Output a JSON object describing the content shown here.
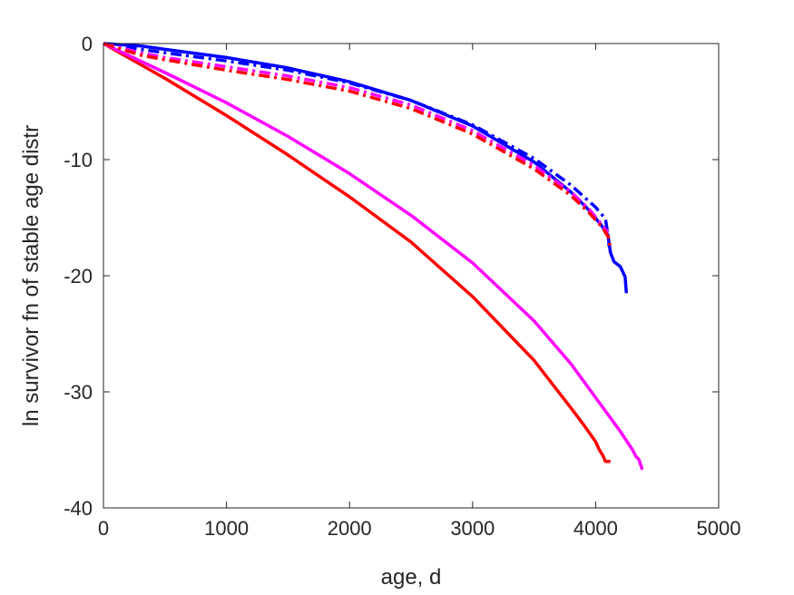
{
  "chart_data": {
    "type": "line",
    "title": "",
    "xlabel": "age, d",
    "ylabel": "ln survivor fn of stable age distr",
    "xlim": [
      0,
      5000
    ],
    "ylim": [
      -40,
      0
    ],
    "xticks": [
      0,
      1000,
      2000,
      3000,
      4000,
      5000
    ],
    "yticks": [
      0,
      -10,
      -20,
      -30,
      -40
    ],
    "xtick_labels": [
      "0",
      "1000",
      "2000",
      "3000",
      "4000",
      "5000"
    ],
    "ytick_labels": [
      "0",
      "-10",
      "-20",
      "-30",
      "-40"
    ],
    "grid": false,
    "series": [
      {
        "color": "#ff0000",
        "style": "solid",
        "points": [
          [
            0,
            0
          ],
          [
            500,
            -3.0
          ],
          [
            1000,
            -6.2
          ],
          [
            1500,
            -9.6
          ],
          [
            2000,
            -13.2
          ],
          [
            2500,
            -17.1
          ],
          [
            3000,
            -21.8
          ],
          [
            3500,
            -27.3
          ],
          [
            3800,
            -31.4
          ],
          [
            3900,
            -32.8
          ],
          [
            4000,
            -34.3
          ],
          [
            4030,
            -35.0
          ],
          [
            4060,
            -35.5
          ],
          [
            4080,
            -36.0
          ],
          [
            4100,
            -36.0
          ],
          [
            4120,
            -36.0
          ]
        ]
      },
      {
        "color": "#ff00ff",
        "style": "solid",
        "points": [
          [
            0,
            0
          ],
          [
            500,
            -2.5
          ],
          [
            1000,
            -5.1
          ],
          [
            1500,
            -8.0
          ],
          [
            2000,
            -11.2
          ],
          [
            2500,
            -14.8
          ],
          [
            3000,
            -18.9
          ],
          [
            3500,
            -23.9
          ],
          [
            3800,
            -27.6
          ],
          [
            4000,
            -30.5
          ],
          [
            4200,
            -33.4
          ],
          [
            4300,
            -35.0
          ],
          [
            4330,
            -35.6
          ],
          [
            4350,
            -35.8
          ],
          [
            4380,
            -36.7
          ]
        ]
      },
      {
        "color": "#0000ff",
        "style": "solid",
        "points": [
          [
            0,
            0
          ],
          [
            300,
            -0.2
          ],
          [
            500,
            -0.5
          ],
          [
            1000,
            -1.2
          ],
          [
            1500,
            -2.1
          ],
          [
            2000,
            -3.3
          ],
          [
            2500,
            -4.9
          ],
          [
            3000,
            -7.1
          ],
          [
            3500,
            -10.2
          ],
          [
            3800,
            -12.8
          ],
          [
            3950,
            -14.4
          ],
          [
            4050,
            -15.7
          ],
          [
            4100,
            -16.5
          ],
          [
            4120,
            -18.0
          ],
          [
            4150,
            -18.8
          ],
          [
            4200,
            -19.2
          ],
          [
            4240,
            -20.1
          ],
          [
            4250,
            -21.5
          ]
        ]
      },
      {
        "color": "#0000ff",
        "style": "dashdot",
        "points": [
          [
            0,
            0
          ],
          [
            300,
            -0.5
          ],
          [
            500,
            -0.8
          ],
          [
            1000,
            -1.5
          ],
          [
            1500,
            -2.3
          ],
          [
            2000,
            -3.4
          ],
          [
            2500,
            -4.9
          ],
          [
            3000,
            -7.0
          ],
          [
            3500,
            -9.9
          ],
          [
            3800,
            -12.2
          ],
          [
            4000,
            -14.1
          ],
          [
            4080,
            -15.1
          ],
          [
            4100,
            -16.5
          ],
          [
            4110,
            -17.5
          ]
        ]
      },
      {
        "color": "#ff00ff",
        "style": "dashdot",
        "points": [
          [
            0,
            0
          ],
          [
            300,
            -0.8
          ],
          [
            500,
            -1.2
          ],
          [
            1000,
            -2.0
          ],
          [
            1500,
            -2.8
          ],
          [
            2000,
            -3.8
          ],
          [
            2500,
            -5.3
          ],
          [
            3000,
            -7.5
          ],
          [
            3500,
            -10.5
          ],
          [
            3800,
            -12.8
          ],
          [
            3950,
            -14.3
          ],
          [
            4050,
            -15.6
          ],
          [
            4100,
            -16.3
          ]
        ]
      },
      {
        "color": "#ff0000",
        "style": "dashdot",
        "points": [
          [
            0,
            0
          ],
          [
            300,
            -1.0
          ],
          [
            500,
            -1.4
          ],
          [
            1000,
            -2.3
          ],
          [
            1500,
            -3.1
          ],
          [
            2000,
            -4.1
          ],
          [
            2500,
            -5.6
          ],
          [
            3000,
            -7.8
          ],
          [
            3500,
            -10.8
          ],
          [
            3800,
            -13.1
          ],
          [
            3950,
            -14.6
          ],
          [
            4050,
            -15.8
          ],
          [
            4100,
            -16.6
          ],
          [
            4120,
            -17.6
          ]
        ]
      }
    ]
  }
}
